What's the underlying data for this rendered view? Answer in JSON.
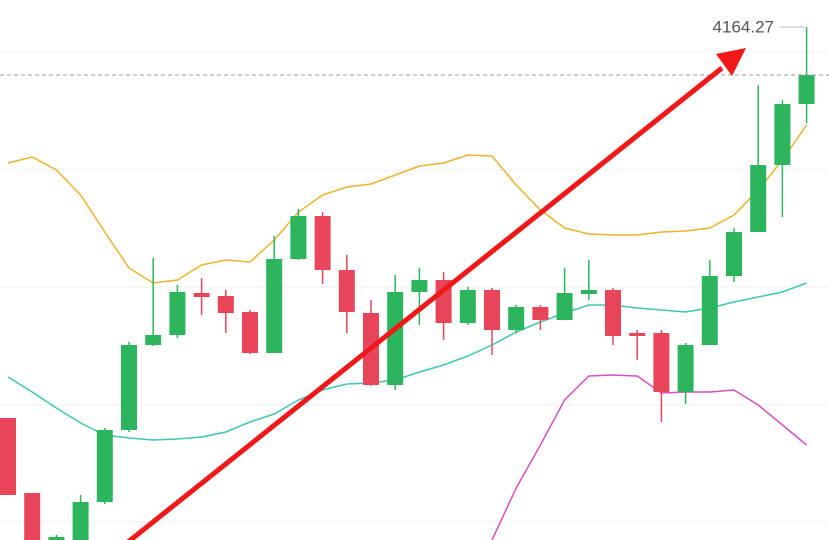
{
  "chart_data": {
    "type": "candlestick",
    "categories": [
      null,
      null,
      null,
      null,
      null,
      null,
      null,
      null,
      null,
      null,
      null,
      null,
      null,
      null,
      null,
      null,
      null,
      null,
      null,
      null,
      null,
      null,
      null,
      null,
      null,
      null,
      null,
      null,
      null,
      null,
      null,
      null,
      null,
      null
    ],
    "open": [
      4007.87,
      3977.87,
      3959.07,
      3959.07,
      3974.27,
      4003.07,
      4037.07,
      4041.07,
      4057.87,
      4056.67,
      4050.27,
      4033.87,
      4071.47,
      4088.67,
      4067.07,
      4049.87,
      4021.07,
      4058.27,
      4063.07,
      4045.87,
      4059.07,
      4043.07,
      4052.27,
      4047.07,
      4057.47,
      4059.07,
      4041.87,
      4041.87,
      4018.27,
      4037.07,
      4064.67,
      4082.27,
      4109.07,
      4133.47
    ],
    "high": [
      4007.87,
      3977.87,
      3961.07,
      3977.07,
      4003.87,
      4038.27,
      4071.87,
      4061.07,
      4063.87,
      4059.07,
      4051.07,
      4080.67,
      4091.47,
      4090.27,
      4073.07,
      4055.07,
      4065.07,
      4067.87,
      4066.27,
      4060.27,
      4059.87,
      4053.07,
      4053.07,
      4067.87,
      4071.07,
      4059.87,
      4043.07,
      4043.07,
      4037.87,
      4071.07,
      4083.87,
      4141.07,
      4135.07,
      4164.27
    ],
    "low": [
      3977.07,
      3959.07,
      3959.07,
      3959.07,
      3973.47,
      4002.27,
      4036.67,
      4039.87,
      4049.07,
      4041.87,
      4033.47,
      4033.87,
      4071.07,
      4061.47,
      4041.87,
      4020.67,
      4019.07,
      4045.07,
      4039.07,
      4045.07,
      4033.07,
      4041.87,
      4043.07,
      4047.07,
      4055.07,
      4037.07,
      4031.07,
      4006.27,
      4013.47,
      4037.07,
      4062.27,
      4082.27,
      4088.27,
      4125.87
    ],
    "close": [
      3977.07,
      3959.07,
      3960.27,
      3974.27,
      4003.07,
      4037.07,
      4041.07,
      4058.27,
      4056.27,
      4049.87,
      4033.87,
      4071.47,
      4088.67,
      4067.07,
      4050.27,
      4021.07,
      4058.27,
      4063.07,
      4045.87,
      4059.07,
      4043.07,
      4052.27,
      4047.07,
      4057.87,
      4059.07,
      4040.67,
      4040.67,
      4018.27,
      4037.07,
      4064.67,
      4082.27,
      4109.07,
      4133.47,
      4145.07
    ],
    "up_color": "#2db55d",
    "down_color": "#e8455a",
    "overlays": [
      {
        "color": "#f0b12c",
        "values": [
          4109.87,
          4112.27,
          4107.07,
          4097.07,
          4082.27,
          4067.87,
          4061.87,
          4063.07,
          4069.07,
          4071.07,
          4070.27,
          4079.07,
          4090.27,
          4097.07,
          4100.27,
          4101.47,
          4105.07,
          4108.67,
          4109.87,
          4113.07,
          4112.67,
          4101.07,
          4091.07,
          4083.87,
          4081.47,
          4081.07,
          4081.07,
          4082.27,
          4082.67,
          4083.87,
          4089.07,
          4099.07,
          4111.07,
          4125.07
        ]
      },
      {
        "color": "#3cc8b0",
        "values": [
          4024.27,
          4018.27,
          4011.87,
          4005.87,
          4001.07,
          3999.87,
          3999.07,
          3999.47,
          4000.27,
          4002.27,
          4006.27,
          4009.47,
          4015.07,
          4019.07,
          4021.47,
          4021.87,
          4023.07,
          4026.27,
          4029.07,
          4032.67,
          4037.07,
          4042.27,
          4046.27,
          4049.87,
          4053.07,
          4053.07,
          4051.87,
          4051.07,
          4050.27,
          4051.87,
          4054.27,
          4056.27,
          4058.27,
          4061.87
        ]
      },
      {
        "color": "#d94fc2",
        "values": [
          null,
          null,
          null,
          null,
          null,
          null,
          null,
          null,
          null,
          null,
          null,
          null,
          null,
          null,
          null,
          null,
          null,
          null,
          null,
          null,
          3959.07,
          3979.87,
          3997.07,
          4015.07,
          4024.67,
          4025.07,
          4024.67,
          4017.87,
          4018.27,
          4018.27,
          4019.07,
          4013.07,
          4005.07,
          3997.07
        ]
      }
    ],
    "ylim": [
      3959.07,
      4175.07
    ]
  }
}
